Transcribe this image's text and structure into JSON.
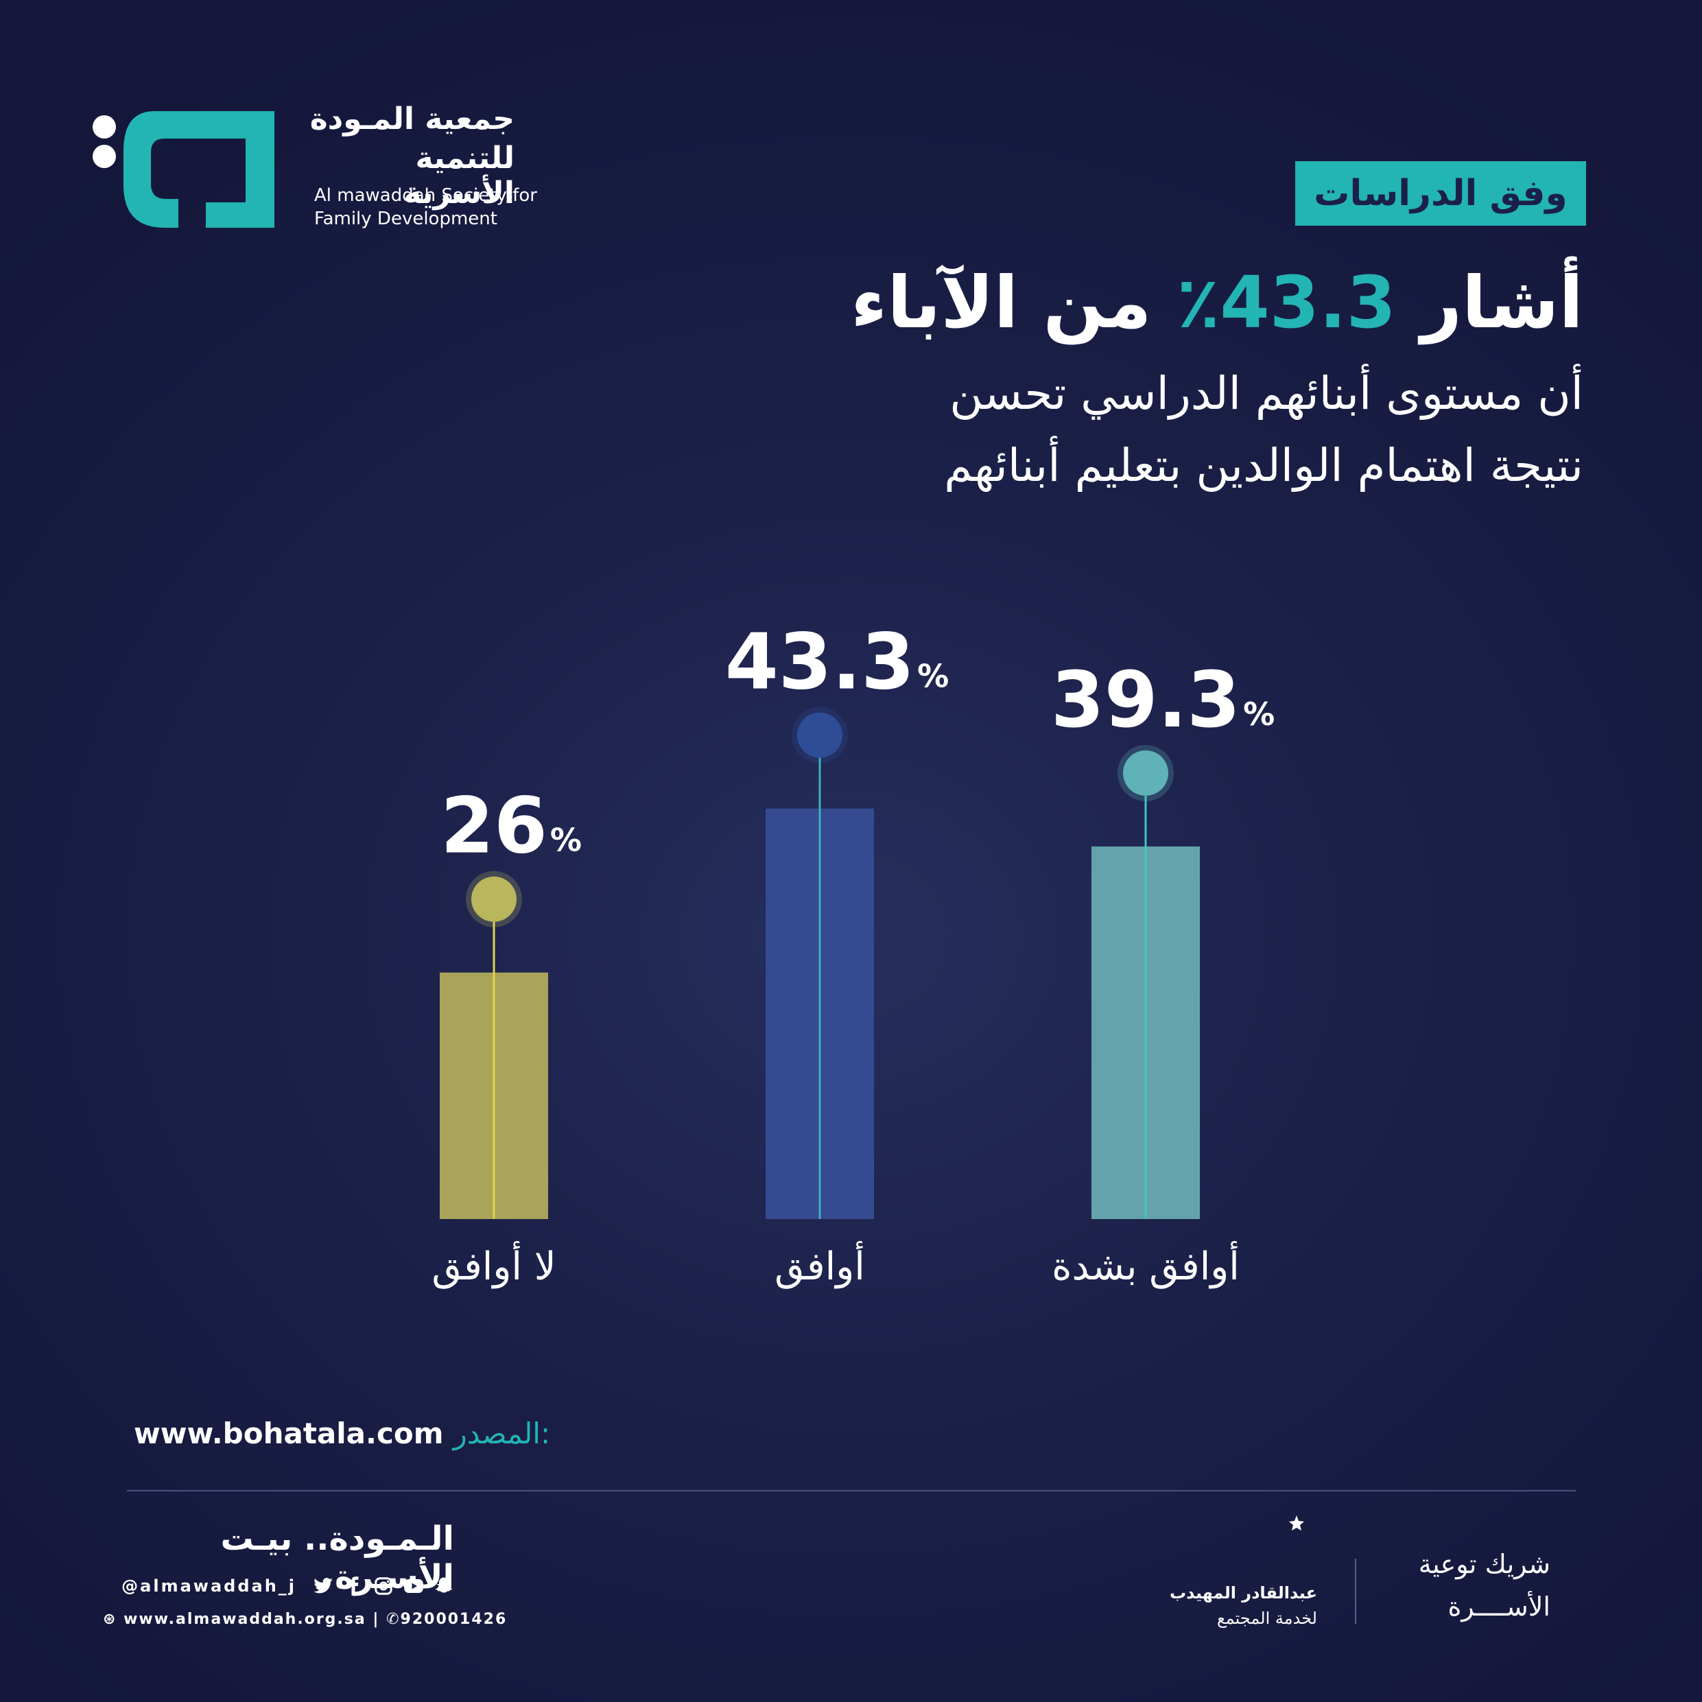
{
  "logo": {
    "arabic_line1": "جمعية المـودة",
    "arabic_line2": "للتنمية الأسرية",
    "english_line1": "Al mawaddah Society for",
    "english_line2": "Family Development",
    "brand_color": "#23b4b4"
  },
  "study_tag": "وفق الدراسات",
  "headline": {
    "prefix": "أشار",
    "value": "43.3٪",
    "suffix": "من الآباء"
  },
  "subline": {
    "line1": "أن مستوى أبنائهم الدراسي تحسن",
    "line2": "نتيجة اهتمام الوالدين بتعليم أبنائهم"
  },
  "chart_data": {
    "type": "bar",
    "categories": [
      "لا أوافق",
      "أوافق",
      "أوافق بشدة"
    ],
    "values": [
      26,
      43.3,
      39.3
    ],
    "value_labels": [
      "26",
      "43.3",
      "39.3"
    ],
    "unit": "%",
    "colors": [
      "#aaa45a",
      "#354a91",
      "#64a3ab"
    ],
    "dot_colors": [
      "#b9b65e",
      "#2e4d96",
      "#5eb2b8"
    ],
    "line_colors": [
      "#e0d24a",
      "#3fb0b5",
      "#3fc7c2"
    ],
    "title": "",
    "xlabel": "",
    "ylabel": ""
  },
  "source": {
    "label": "المصدر:",
    "url": "www.bohatala.com"
  },
  "footer": {
    "slogan": "الـمـودة.. بيـت الأسـرة",
    "handle": "@almawaddah_j",
    "social_icons": [
      "twitter-icon",
      "facebook-icon",
      "instagram-icon",
      "youtube-icon",
      "snapchat-icon"
    ],
    "website": "www.almawaddah.org.sa",
    "phone": "920001426",
    "partner_name_line1": "عبدالقادر المهيدب",
    "partner_name_line2": "لخدمة المجتمع",
    "partner_title_line1": "شريك توعية",
    "partner_title_line2": "الأســــرة"
  }
}
